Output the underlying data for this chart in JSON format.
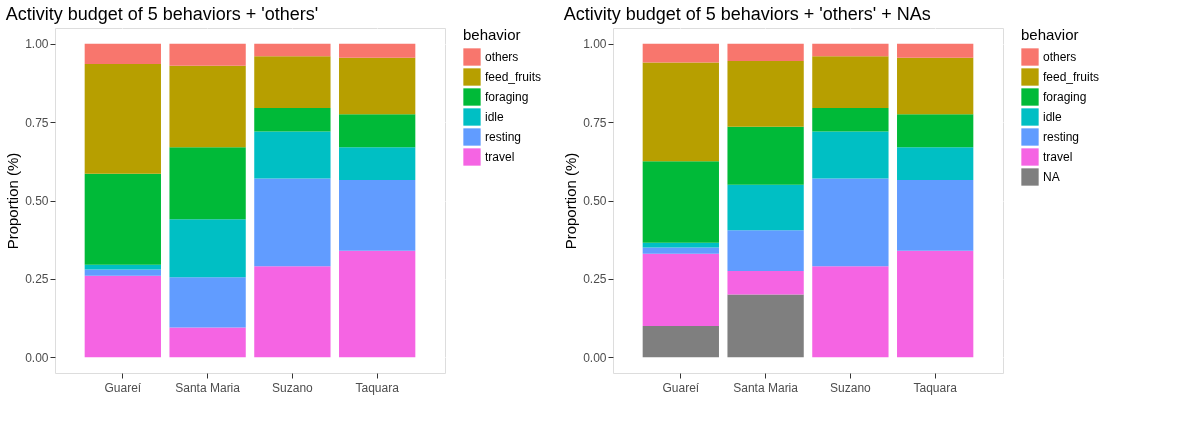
{
  "chart_data": [
    {
      "type": "bar",
      "title": "Activity budget of 5 behaviors + 'others'",
      "ylabel": "Proportion (%)",
      "legend_title": "behavior",
      "stacked": true,
      "legend": "right",
      "grid": true,
      "categories": [
        "Guareí",
        "Santa Maria",
        "Suzano",
        "Taquara"
      ],
      "ylim": [
        -0.05,
        1.05
      ],
      "yticks": [
        {
          "value": 0,
          "label": "0.00"
        },
        {
          "value": 0.25,
          "label": "0.25"
        },
        {
          "value": 0.5,
          "label": "0.50"
        },
        {
          "value": 0.75,
          "label": "0.75"
        },
        {
          "value": 1,
          "label": "1.00"
        }
      ],
      "series": [
        {
          "name": "travel",
          "color": "#f564e3",
          "values": [
            0.26,
            0.095,
            0.29,
            0.34
          ]
        },
        {
          "name": "resting",
          "color": "#619cff",
          "values": [
            0.02,
            0.16,
            0.28,
            0.225
          ]
        },
        {
          "name": "idle",
          "color": "#00bfc4",
          "values": [
            0.015,
            0.185,
            0.15,
            0.105
          ]
        },
        {
          "name": "foraging",
          "color": "#00ba38",
          "values": [
            0.29,
            0.23,
            0.075,
            0.105
          ]
        },
        {
          "name": "feed_fruits",
          "color": "#b79f00",
          "values": [
            0.35,
            0.26,
            0.165,
            0.18
          ]
        },
        {
          "name": "others",
          "color": "#f8766d",
          "values": [
            0.065,
            0.07,
            0.04,
            0.045
          ]
        }
      ]
    },
    {
      "type": "bar",
      "title": "Activity budget of 5 behaviors + 'others' + NAs",
      "ylabel": "Proportion (%)",
      "legend_title": "behavior",
      "stacked": true,
      "legend": "right",
      "grid": true,
      "categories": [
        "Guareí",
        "Santa Maria",
        "Suzano",
        "Taquara"
      ],
      "ylim": [
        -0.05,
        1.05
      ],
      "yticks": [
        {
          "value": 0,
          "label": "0.00"
        },
        {
          "value": 0.25,
          "label": "0.25"
        },
        {
          "value": 0.5,
          "label": "0.50"
        },
        {
          "value": 0.75,
          "label": "0.75"
        },
        {
          "value": 1,
          "label": "1.00"
        }
      ],
      "series": [
        {
          "name": "NA",
          "color": "#7f7f7f",
          "values": [
            0.1,
            0.2,
            0,
            0
          ]
        },
        {
          "name": "travel",
          "color": "#f564e3",
          "values": [
            0.23,
            0.075,
            0.29,
            0.34
          ]
        },
        {
          "name": "resting",
          "color": "#619cff",
          "values": [
            0.02,
            0.13,
            0.28,
            0.225
          ]
        },
        {
          "name": "idle",
          "color": "#00bfc4",
          "values": [
            0.015,
            0.145,
            0.15,
            0.105
          ]
        },
        {
          "name": "foraging",
          "color": "#00ba38",
          "values": [
            0.26,
            0.185,
            0.075,
            0.105
          ]
        },
        {
          "name": "feed_fruits",
          "color": "#b79f00",
          "values": [
            0.315,
            0.21,
            0.165,
            0.18
          ]
        },
        {
          "name": "others",
          "color": "#f8766d",
          "values": [
            0.06,
            0.055,
            0.04,
            0.045
          ]
        }
      ]
    }
  ]
}
